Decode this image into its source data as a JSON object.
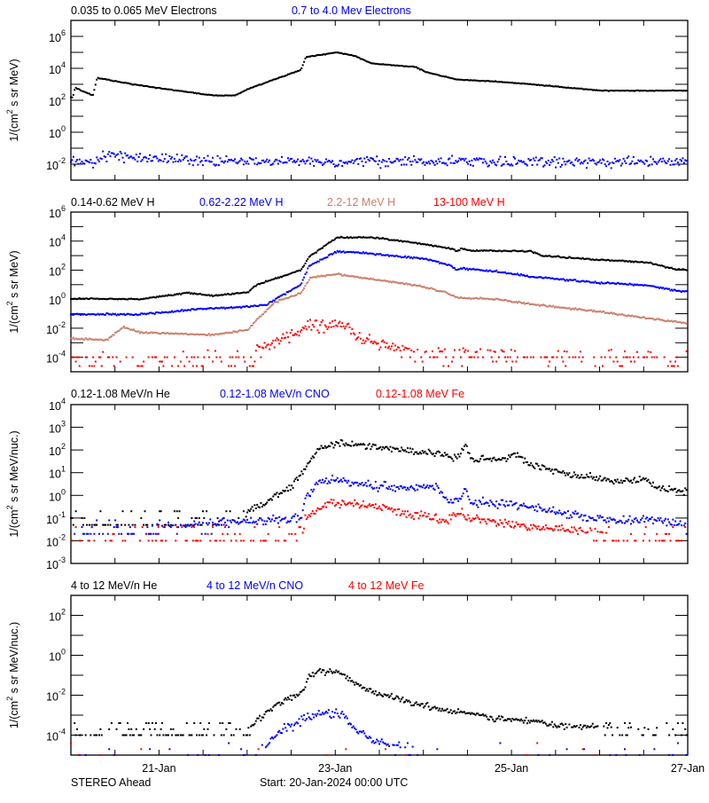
{
  "footer": {
    "spacecraft": "STEREO Ahead",
    "start": "Start: 20-Jan-2024 00:00 UTC"
  },
  "colors": {
    "black": "#000000",
    "blue": "#0000ff",
    "brown": "#c8806a",
    "red": "#ff0000"
  },
  "chart_data": [
    {
      "type": "scatter",
      "ylabel": "1/(cm² s sr MeV)",
      "yscale": "log",
      "ylim": [
        0.001,
        10000000
      ],
      "ytick_exponents": [
        6,
        4,
        2,
        0,
        -2
      ],
      "xlim": [
        "2024-01-20 00:00",
        "2024-01-27 00:00"
      ],
      "series": [
        {
          "name": "0.035 to 0.065 MeV Electrons",
          "color": "#000000",
          "x": [
            "2024-01-20 00:30",
            "2024-01-20 01:10",
            "2024-01-20 06:00",
            "2024-01-20 07:10",
            "2024-01-20 16:50",
            "2024-01-21 05:00",
            "2024-01-21 14:40",
            "2024-01-21 20:40",
            "2024-01-22 00:15",
            "2024-01-22 14:40",
            "2024-01-22 16:00",
            "2024-01-23 00:30",
            "2024-01-23 05:15",
            "2024-01-23 10:00",
            "2024-01-23 22:00",
            "2024-01-24 00:30",
            "2024-01-24 09:00",
            "2024-01-24 17:30",
            "2024-01-25 05:30",
            "2024-01-25 17:30",
            "2024-01-26 00:45",
            "2024-01-27 00:00"
          ],
          "y": [
            150,
            600,
            200,
            2500,
            1000,
            400,
            200,
            200,
            500,
            8000,
            50000,
            100000,
            60000,
            20000,
            12000,
            6000,
            2000,
            1600,
            1000,
            560,
            400,
            400
          ]
        },
        {
          "name": "0.7 to 4.0 Mev Electrons",
          "color": "#0000ff",
          "x": [
            "2024-01-20 00:00",
            "2024-01-20 06:00",
            "2024-01-20 09:40",
            "2024-01-20 19:10",
            "2024-01-21 14:40",
            "2024-01-27 00:00"
          ],
          "y": [
            0.012,
            0.012,
            0.04,
            0.025,
            0.015,
            0.013
          ]
        }
      ]
    },
    {
      "type": "scatter",
      "ylabel": "1/(cm² s sr MeV)",
      "yscale": "log",
      "ylim": [
        1e-05,
        1000000
      ],
      "ytick_exponents": [
        6,
        4,
        2,
        0,
        -2,
        -4
      ],
      "xlim": [
        "2024-01-20 00:00",
        "2024-01-27 00:00"
      ],
      "series": [
        {
          "name": "0.14-0.62 MeV H",
          "color": "#000000",
          "x": [
            "2024-01-20 00:00",
            "2024-01-20 19:10",
            "2024-01-21 07:30",
            "2024-01-21 14:40",
            "2024-01-22 00:15",
            "2024-01-22 02:40",
            "2024-01-22 14:40",
            "2024-01-22 16:50",
            "2024-01-23 00:30",
            "2024-01-23 10:00",
            "2024-01-23 19:40",
            "2024-01-24 07:40",
            "2024-01-24 09:00",
            "2024-01-24 10:15",
            "2024-01-24 12:45",
            "2024-01-25 05:30",
            "2024-01-25 08:00",
            "2024-01-26 00:45",
            "2024-01-26 13:00",
            "2024-01-26 20:10",
            "2024-01-27 00:00"
          ],
          "y": [
            1.1,
            1.0,
            2.7,
            1.7,
            3,
            10,
            100,
            800,
            18000,
            18000,
            9000,
            3000,
            2000,
            3000,
            2200,
            2000,
            1000,
            500,
            350,
            120,
            100
          ]
        },
        {
          "name": "0.62-2.22 MeV H",
          "color": "#0000ff",
          "x": [
            "2024-01-20 00:00",
            "2024-01-20 19:10",
            "2024-01-21 09:50",
            "2024-01-22 00:15",
            "2024-01-22 05:00",
            "2024-01-22 14:40",
            "2024-01-22 16:50",
            "2024-01-23 00:30",
            "2024-01-23 05:15",
            "2024-01-24 00:30",
            "2024-01-24 07:40",
            "2024-01-24 09:00",
            "2024-01-24 10:15",
            "2024-01-24 20:00",
            "2024-01-25 05:30",
            "2024-01-26 00:45",
            "2024-01-26 13:00",
            "2024-01-26 20:10",
            "2024-01-27 00:00"
          ],
          "y": [
            0.09,
            0.09,
            0.2,
            0.3,
            0.4,
            10,
            200,
            1900,
            1700,
            600,
            200,
            100,
            130,
            80,
            35,
            13,
            9,
            4,
            3
          ]
        },
        {
          "name": "2.2-12 MeV H",
          "color": "#c8806a",
          "x": [
            "2024-01-20 00:00",
            "2024-01-20 09:40",
            "2024-01-20 14:20",
            "2024-01-20 19:10",
            "2024-01-21 14:40",
            "2024-01-22 00:15",
            "2024-01-22 02:40",
            "2024-01-22 07:30",
            "2024-01-22 14:40",
            "2024-01-22 17:15",
            "2024-01-23 00:30",
            "2024-01-23 05:15",
            "2024-01-23 22:00",
            "2024-01-24 06:30",
            "2024-01-24 09:00",
            "2024-01-24 20:00",
            "2024-01-25 05:30",
            "2024-01-26 00:45",
            "2024-01-26 15:20",
            "2024-01-27 00:00"
          ],
          "y": [
            0.002,
            0.0015,
            0.012,
            0.005,
            0.0035,
            0.008,
            0.04,
            0.6,
            2.5,
            30,
            55,
            35,
            9,
            2.8,
            1.3,
            1,
            0.45,
            0.13,
            0.04,
            0.022
          ]
        },
        {
          "name": "13-100 MeV H",
          "color": "#ff0000",
          "floor": 0.0001,
          "x": [
            "2024-01-20 00:00",
            "2024-01-22 00:15",
            "2024-01-22 02:40",
            "2024-01-22 05:00",
            "2024-01-22 14:40",
            "2024-01-22 17:15",
            "2024-01-23 02:50",
            "2024-01-23 05:15",
            "2024-01-23 14:50",
            "2024-01-24 00:30",
            "2024-01-27 00:00"
          ],
          "y": [
            0.0001,
            0.0001,
            0.0003,
            0.0008,
            0.005,
            0.015,
            0.02,
            0.003,
            0.0005,
            0.0002,
            0.0001
          ]
        }
      ]
    },
    {
      "type": "scatter",
      "ylabel": "1/(cm² s sr MeV/nuc.)",
      "yscale": "log",
      "ylim": [
        0.001,
        10000
      ],
      "ytick_exponents": [
        4,
        3,
        2,
        1,
        0,
        -1,
        -2,
        -3
      ],
      "xlim": [
        "2024-01-20 00:00",
        "2024-01-27 00:00"
      ],
      "series": [
        {
          "name": "0.12-1.08 MeV/n He",
          "color": "#000000",
          "floor": 0.05,
          "x": [
            "2024-01-20 00:00",
            "2024-01-21 23:00",
            "2024-01-22 00:15",
            "2024-01-22 05:00",
            "2024-01-22 12:15",
            "2024-01-22 16:00",
            "2024-01-22 19:40",
            "2024-01-23 00:30",
            "2024-01-23 05:15",
            "2024-01-23 14:50",
            "2024-01-24 00:30",
            "2024-01-24 04:00",
            "2024-01-24 09:00",
            "2024-01-24 10:15",
            "2024-01-24 11:30",
            "2024-01-24 12:45",
            "2024-01-24 22:20",
            "2024-01-25 00:45",
            "2024-01-25 05:30",
            "2024-01-25 15:00",
            "2024-01-26 05:45",
            "2024-01-26 13:00",
            "2024-01-26 15:20",
            "2024-01-27 00:00"
          ],
          "y": [
            0.07,
            0.07,
            0.2,
            0.5,
            2.7,
            18,
            120,
            200,
            190,
            110,
            85,
            70,
            45,
            70,
            200,
            40,
            40,
            65,
            22,
            9,
            4.3,
            5,
            2.2,
            1.4
          ]
        },
        {
          "name": "0.12-1.08 MeV/n CNO",
          "color": "#0000ff",
          "floor": 0.02,
          "x": [
            "2024-01-20 00:00",
            "2024-01-22 14:40",
            "2024-01-22 16:00",
            "2024-01-22 19:40",
            "2024-01-22 23:15",
            "2024-01-23 05:15",
            "2024-01-23 14:50",
            "2024-01-24 04:00",
            "2024-01-24 06:30",
            "2024-01-24 10:15",
            "2024-01-24 11:30",
            "2024-01-24 12:45",
            "2024-01-24 22:20",
            "2024-01-25 05:30",
            "2024-01-25 15:00",
            "2024-01-26 05:45",
            "2024-01-26 15:20",
            "2024-01-27 00:00"
          ],
          "y": [
            0.02,
            0.1,
            0.9,
            3.5,
            5.6,
            3.5,
            2.2,
            2.2,
            0.6,
            0.7,
            2.5,
            0.5,
            0.45,
            0.3,
            0.15,
            0.07,
            0.1,
            0.04
          ]
        },
        {
          "name": "0.12-1.08 MeV Fe",
          "color": "#ff0000",
          "floor": 0.01,
          "x": [
            "2024-01-20 00:00",
            "2024-01-22 14:40",
            "2024-01-22 16:00",
            "2024-01-22 22:00",
            "2024-01-23 05:15",
            "2024-01-23 14:50",
            "2024-01-24 06:30",
            "2024-01-24 09:00",
            "2024-01-24 12:45",
            "2024-01-25 00:45",
            "2024-01-27 00:00"
          ],
          "y": [
            0.01,
            0.01,
            0.11,
            0.45,
            0.45,
            0.23,
            0.07,
            0.2,
            0.1,
            0.05,
            0.01
          ]
        }
      ]
    },
    {
      "type": "scatter",
      "ylabel": "1/(cm² s sr MeV/nuc.)",
      "yscale": "log",
      "ylim": [
        1e-05,
        1000
      ],
      "ytick_exponents": [
        2,
        0,
        -2,
        -4
      ],
      "xlim": [
        "2024-01-20 00:00",
        "2024-01-27 00:00"
      ],
      "xtick_labels": [
        "21-Jan",
        "23-Jan",
        "25-Jan",
        "27-Jan"
      ],
      "series": [
        {
          "name": "4 to 12 MeV/n He",
          "color": "#000000",
          "floor": 0.0001,
          "x": [
            "2024-01-20 00:00",
            "2024-01-22 00:15",
            "2024-01-22 02:40",
            "2024-01-22 09:50",
            "2024-01-22 14:40",
            "2024-01-22 16:50",
            "2024-01-22 19:40",
            "2024-01-23 00:30",
            "2024-01-23 02:50",
            "2024-01-23 10:00",
            "2024-01-23 19:40",
            "2024-01-24 05:15",
            "2024-01-24 20:00",
            "2024-01-25 05:30",
            "2024-01-25 15:00",
            "2024-01-27 00:00"
          ],
          "y": [
            0.00012,
            0.00015,
            0.0006,
            0.005,
            0.013,
            0.08,
            0.14,
            0.16,
            0.08,
            0.013,
            0.005,
            0.002,
            0.0007,
            0.0005,
            0.00028,
            0.00015
          ]
        },
        {
          "name": "4 to 12 MeV/n CNO",
          "color": "#0000ff",
          "floor": 1e-05,
          "x": [
            "2024-01-20 00:00",
            "2024-01-22 02:40",
            "2024-01-22 09:50",
            "2024-01-22 16:00",
            "2024-01-22 23:15",
            "2024-01-23 02:50",
            "2024-01-23 05:15",
            "2024-01-23 10:00",
            "2024-01-24 00:30",
            "2024-01-27 00:00"
          ],
          "y": [
            1e-05,
            1e-05,
            0.0002,
            0.0008,
            0.0015,
            0.0008,
            0.0002,
            5e-05,
            1e-05,
            1e-05
          ]
        },
        {
          "name": "4 to 12 MeV Fe",
          "color": "#ff0000",
          "floor": 1e-05,
          "x": [
            "2024-01-20 00:00",
            "2024-01-27 00:00"
          ],
          "y": [
            1e-05,
            1e-05
          ]
        }
      ]
    }
  ]
}
